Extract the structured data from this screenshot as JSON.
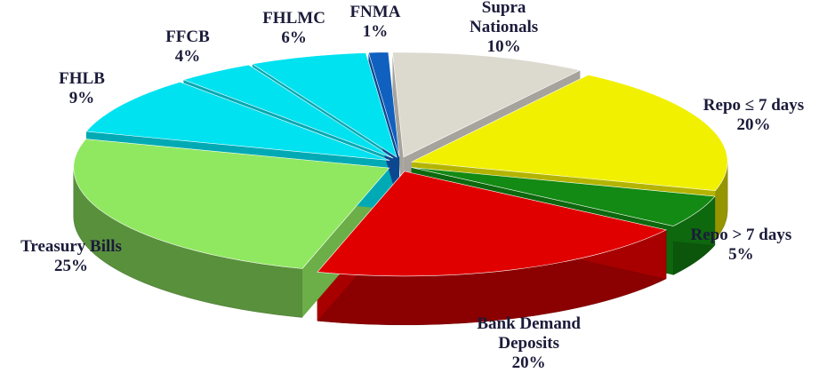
{
  "chart_data": {
    "type": "pie",
    "categories": [
      "Supra Nationals",
      "Repo ≤ 7 days",
      "Repo > 7 days",
      "Bank Demand Deposits",
      "Treasury Bills",
      "FHLB",
      "FFCB",
      "FHLMC",
      "FNMA"
    ],
    "values": [
      10,
      20,
      5,
      20,
      25,
      9,
      4,
      6,
      1
    ],
    "value_labels": [
      "10%",
      "20%",
      "5%",
      "20%",
      "25%",
      "9%",
      "4%",
      "6%",
      "1%"
    ],
    "colors": [
      "#dcd9cf",
      "#f0f000",
      "#138a13",
      "#e00000",
      "#90e860",
      "#00e2f0",
      "#00e2f0",
      "#00e2f0",
      "#1060c0"
    ]
  }
}
